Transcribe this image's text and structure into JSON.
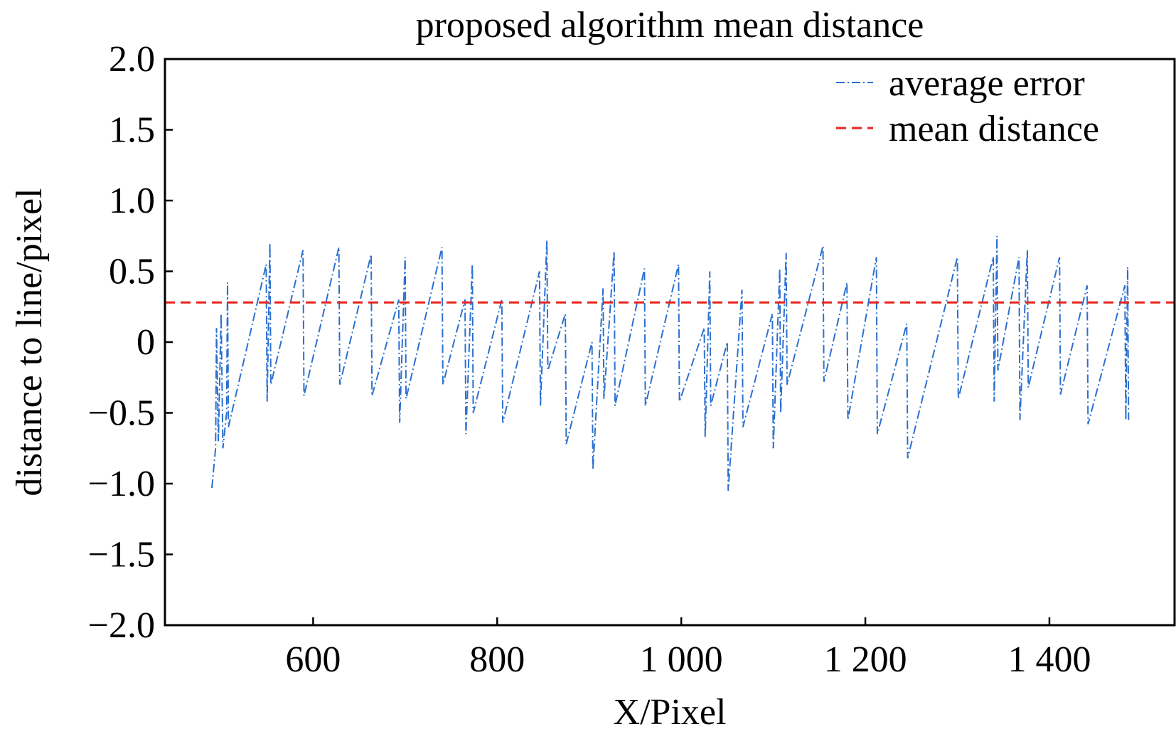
{
  "chart_data": {
    "type": "line",
    "title": "proposed algorithm mean distance",
    "xlabel": "X/Pixel",
    "ylabel": "distance to line/pixel",
    "xlim": [
      439,
      1536
    ],
    "ylim": [
      -2.0,
      2.0
    ],
    "xticks": [
      600,
      800,
      {
        "value": 1000,
        "label": "1 000"
      },
      {
        "value": 1200,
        "label": "1 200"
      },
      {
        "value": 1400,
        "label": "1 400"
      }
    ],
    "yticks": [
      {
        "value": 2,
        "label": "2.0"
      },
      1.5,
      {
        "value": 1,
        "label": "1.0"
      },
      0.5,
      0,
      {
        "value": -0.5,
        "label": "−0.5"
      },
      {
        "value": -1,
        "label": "−1.0"
      },
      {
        "value": -1.5,
        "label": "−1.5"
      },
      {
        "value": -2,
        "label": "−2.0"
      }
    ],
    "legend": "upper right",
    "x": [
      490,
      494,
      495,
      497,
      500,
      502,
      506,
      507,
      508,
      549,
      550,
      553,
      554,
      589,
      590,
      628,
      629,
      663,
      664,
      693,
      694,
      700,
      701,
      740,
      741,
      765,
      766,
      773,
      774,
      805,
      806,
      846,
      847,
      854,
      855,
      874,
      875,
      903,
      904,
      915,
      916,
      927,
      928,
      960,
      961,
      997,
      998,
      1025,
      1026,
      1031,
      1032,
      1050,
      1051,
      1066,
      1067,
      1099,
      1100,
      1107,
      1108,
      1114,
      1115,
      1154,
      1155,
      1180,
      1181,
      1212,
      1213,
      1245,
      1246,
      1300,
      1301,
      1339,
      1340,
      1343,
      1344,
      1367,
      1368,
      1376,
      1377,
      1411,
      1412,
      1441,
      1442,
      1482,
      1483,
      1485,
      1486
    ],
    "series": [
      {
        "name": "average error",
        "color": "#2b6fd0",
        "values": [
          -1.03,
          -0.75,
          0.1,
          -0.7,
          0.2,
          -0.75,
          -0.5,
          0.42,
          -0.6,
          0.55,
          -0.42,
          0.7,
          -0.3,
          0.65,
          -0.38,
          0.67,
          -0.3,
          0.62,
          -0.38,
          0.3,
          -0.57,
          0.6,
          -0.4,
          0.67,
          -0.3,
          0.3,
          -0.65,
          0.55,
          -0.5,
          0.3,
          -0.57,
          0.5,
          -0.45,
          0.72,
          -0.2,
          0.2,
          -0.72,
          0.0,
          -0.9,
          0.38,
          -0.4,
          0.64,
          -0.45,
          0.52,
          -0.45,
          0.55,
          -0.42,
          0.1,
          -0.67,
          0.5,
          -0.45,
          0.0,
          -1.05,
          0.37,
          -0.6,
          0.2,
          -0.75,
          0.52,
          -0.5,
          0.63,
          -0.3,
          0.68,
          -0.28,
          0.42,
          -0.55,
          0.6,
          -0.65,
          0.13,
          -0.82,
          0.6,
          -0.4,
          0.6,
          -0.42,
          0.75,
          -0.2,
          0.6,
          -0.55,
          0.65,
          -0.32,
          0.6,
          -0.37,
          0.4,
          -0.58,
          0.4,
          -0.55,
          0.53,
          -0.55
        ]
      },
      {
        "name": "mean distance",
        "color": "#e8231c",
        "value": 0.28
      }
    ]
  }
}
